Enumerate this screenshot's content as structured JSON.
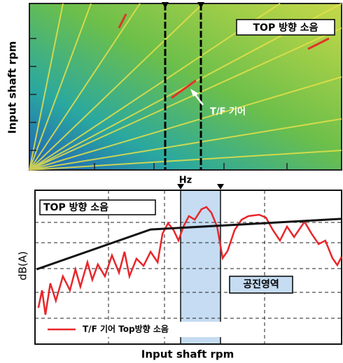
{
  "chart_data": [
    {
      "type": "spectrogram",
      "y_label": "Input shaft rpm",
      "annotations": [
        "TOP 방향 소음",
        "T/F 기어"
      ]
    },
    {
      "type": "line",
      "title": "TOP 방향 소음",
      "y_label": "dB(A)",
      "x_label": "Input shaft rpm",
      "band_label": "Hz",
      "band": [
        47.5,
        60.5
      ],
      "band_text": "공진영역",
      "xlim": [
        0,
        100
      ],
      "ylim": [
        0,
        100
      ],
      "series": [
        {
          "name": "T/F 기어 Top방향 소음",
          "color": "#e8262a",
          "x": [
            1.1,
            2.3,
            3.4,
            5.0,
            6.8,
            9.1,
            11.4,
            13.2,
            14.8,
            17.1,
            18.7,
            20.5,
            22.8,
            25.1,
            27.4,
            29.2,
            30.8,
            33.1,
            35.4,
            37.7,
            40.0,
            41.6,
            43.4,
            45.2,
            46.8,
            48.4,
            50.2,
            52.1,
            54.3,
            55.9,
            57.5,
            59.4,
            61.2,
            62.8,
            65.1,
            67.4,
            69.6,
            73.1,
            75.3,
            77.6,
            79.9,
            82.2,
            84.5,
            87.9,
            90.2,
            92.5,
            94.7,
            97.0,
            98.6,
            100
          ],
          "values": [
            23.6,
            35.0,
            19.1,
            39.5,
            28.2,
            44.1,
            35.0,
            48.6,
            37.3,
            53.2,
            41.8,
            51.8,
            44.1,
            57.7,
            46.4,
            60.0,
            44.1,
            55.5,
            50.9,
            60.0,
            53.2,
            71.8,
            78.6,
            74.1,
            67.3,
            76.4,
            83.2,
            80.9,
            87.7,
            89.1,
            85.5,
            76.4,
            55.9,
            60.5,
            74.1,
            80.9,
            83.2,
            84.1,
            82.3,
            74.1,
            67.3,
            76.4,
            69.6,
            79.5,
            71.8,
            65.0,
            67.3,
            55.9,
            51.4,
            56.8
          ]
        },
        {
          "color": "#111111",
          "x": [
            0.5,
            37.7,
            100
          ],
          "values": [
            48.6,
            74.5,
            81.4
          ]
        }
      ]
    }
  ]
}
